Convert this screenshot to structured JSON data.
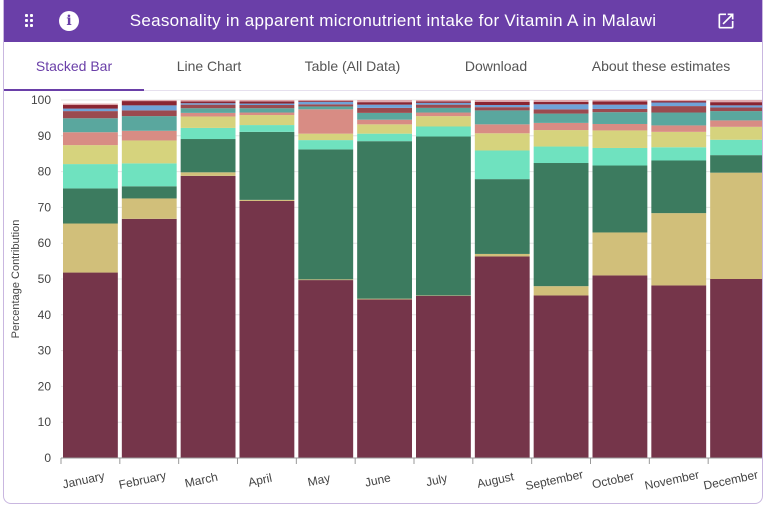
{
  "header": {
    "title": "Seasonality in apparent micronutrient intake for Vitamin A in Malawi",
    "menu_icon": "grid-icon",
    "info_icon": "info-icon",
    "info_glyph": "i",
    "open_icon": "external-link-icon"
  },
  "tabs": [
    {
      "label": "Stacked Bar",
      "active": true
    },
    {
      "label": "Line Chart",
      "active": false
    },
    {
      "label": "Table (All Data)",
      "active": false
    },
    {
      "label": "Download",
      "active": false
    },
    {
      "label": "About these estimates",
      "active": false
    }
  ],
  "chart_data": {
    "type": "bar",
    "stacked": true,
    "ylabel": "Percentage Contribution",
    "xlabel": "",
    "ylim": [
      0,
      100
    ],
    "yticks": [
      0,
      10,
      20,
      30,
      40,
      50,
      60,
      70,
      80,
      90,
      100
    ],
    "grid": true,
    "categories": [
      "January",
      "February",
      "March",
      "April",
      "May",
      "June",
      "July",
      "August",
      "September",
      "October",
      "November",
      "December"
    ],
    "series": [
      {
        "color": "#75354a",
        "values": [
          51.8,
          66.8,
          78.8,
          71.8,
          49.7,
          44.3,
          45.3,
          56.3,
          45.4,
          51.0,
          48.2,
          50.0
        ]
      },
      {
        "color": "#d1bf7a",
        "values": [
          13.7,
          5.7,
          1.0,
          0.3,
          0.2,
          0.2,
          0.1,
          0.7,
          2.6,
          12.0,
          20.2,
          29.7
        ]
      },
      {
        "color": "#3c7b5f",
        "values": [
          9.8,
          3.4,
          9.3,
          19.0,
          36.3,
          44.0,
          44.4,
          20.9,
          34.4,
          18.7,
          14.7,
          4.9
        ]
      },
      {
        "color": "#6fe2bf",
        "values": [
          6.8,
          6.4,
          3.1,
          1.9,
          2.6,
          2.1,
          2.8,
          8.0,
          4.6,
          4.9,
          3.7,
          4.3
        ]
      },
      {
        "color": "#d6d37d",
        "values": [
          5.3,
          6.4,
          3.2,
          2.8,
          1.8,
          2.6,
          2.9,
          4.8,
          4.6,
          4.9,
          4.3,
          3.6
        ]
      },
      {
        "color": "#d88c84",
        "values": [
          3.6,
          2.7,
          1.0,
          0.7,
          6.8,
          1.3,
          1.0,
          2.5,
          2.0,
          1.8,
          1.8,
          1.8
        ]
      },
      {
        "color": "#5aa79e",
        "values": [
          3.9,
          4.1,
          1.3,
          1.2,
          0.8,
          1.9,
          1.3,
          3.9,
          2.6,
          3.3,
          3.6,
          2.6
        ]
      },
      {
        "color": "#9b4a4f",
        "values": [
          2.0,
          1.6,
          1.0,
          0.9,
          0.6,
          1.4,
          0.9,
          0.9,
          1.2,
          0.9,
          1.8,
          1.0
        ]
      },
      {
        "color": "#6fa3d8",
        "values": [
          0.7,
          1.4,
          0.4,
          0.4,
          0.7,
          0.9,
          0.5,
          0.6,
          1.4,
          1.2,
          1.0,
          0.6
        ]
      },
      {
        "color": "#8a2532",
        "values": [
          1.0,
          1.2,
          0.5,
          0.6,
          0.3,
          0.7,
          0.4,
          0.9,
          0.7,
          0.9,
          0.4,
          0.9
        ]
      },
      {
        "color": "#e0a9ae",
        "values": [
          0.4,
          0.3,
          0.4,
          0.4,
          0.2,
          0.6,
          0.4,
          0.5,
          0.5,
          0.4,
          0.3,
          0.6
        ]
      }
    ]
  }
}
